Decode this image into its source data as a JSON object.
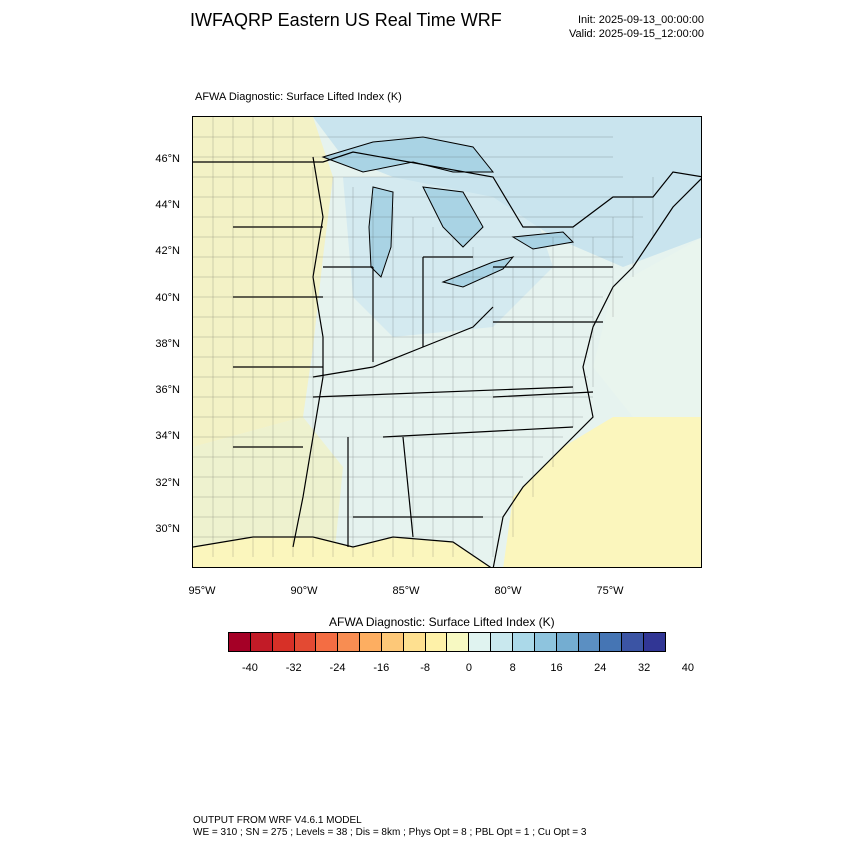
{
  "header": {
    "title": "IWFAQRP Eastern US Real Time WRF",
    "init": "Init: 2025-09-13_00:00:00",
    "valid": "Valid: 2025-09-15_12:00:00"
  },
  "plot": {
    "title": "AFWA Diagnostic: Surface Lifted Index   (K)"
  },
  "map": {
    "lat_labels": [
      "46°N",
      "44°N",
      "42°N",
      "40°N",
      "38°N",
      "36°N",
      "34°N",
      "32°N",
      "30°N"
    ],
    "lon_labels": [
      "95°W",
      "90°W",
      "85°W",
      "80°W",
      "75°W"
    ],
    "colors": {
      "land_light": "#e6f3ef",
      "land_yellow": "#f7f4c0",
      "land_blue": "#cfe7ef",
      "ocean_yellow": "#fbf6bd",
      "lake_blue": "#a9d3e4",
      "ocean_blue_north": "#c9e4ee"
    }
  },
  "colorbar": {
    "title": "AFWA Diagnostic: Surface Lifted Index  (K)",
    "labels": [
      "-40",
      "-32",
      "-24",
      "-16",
      "-8",
      "0",
      "8",
      "16",
      "24",
      "32",
      "40"
    ],
    "colors": [
      "#a50026",
      "#c21b27",
      "#d73027",
      "#e34a33",
      "#f46d43",
      "#f88d52",
      "#fdae61",
      "#fdc878",
      "#fee090",
      "#fef1a8",
      "#f7f9c2",
      "#e0f3f0",
      "#c9e8ee",
      "#abd9e9",
      "#8ec4de",
      "#74add1",
      "#5b8fc2",
      "#4575b4",
      "#3b54a4",
      "#313695"
    ]
  },
  "footer": {
    "line1": "OUTPUT FROM WRF V4.6.1 MODEL",
    "line2": "WE = 310 ; SN = 275 ; Levels = 38 ; Dis = 8km ; Phys Opt = 8 ; PBL Opt = 1 ; Cu Opt = 3"
  }
}
